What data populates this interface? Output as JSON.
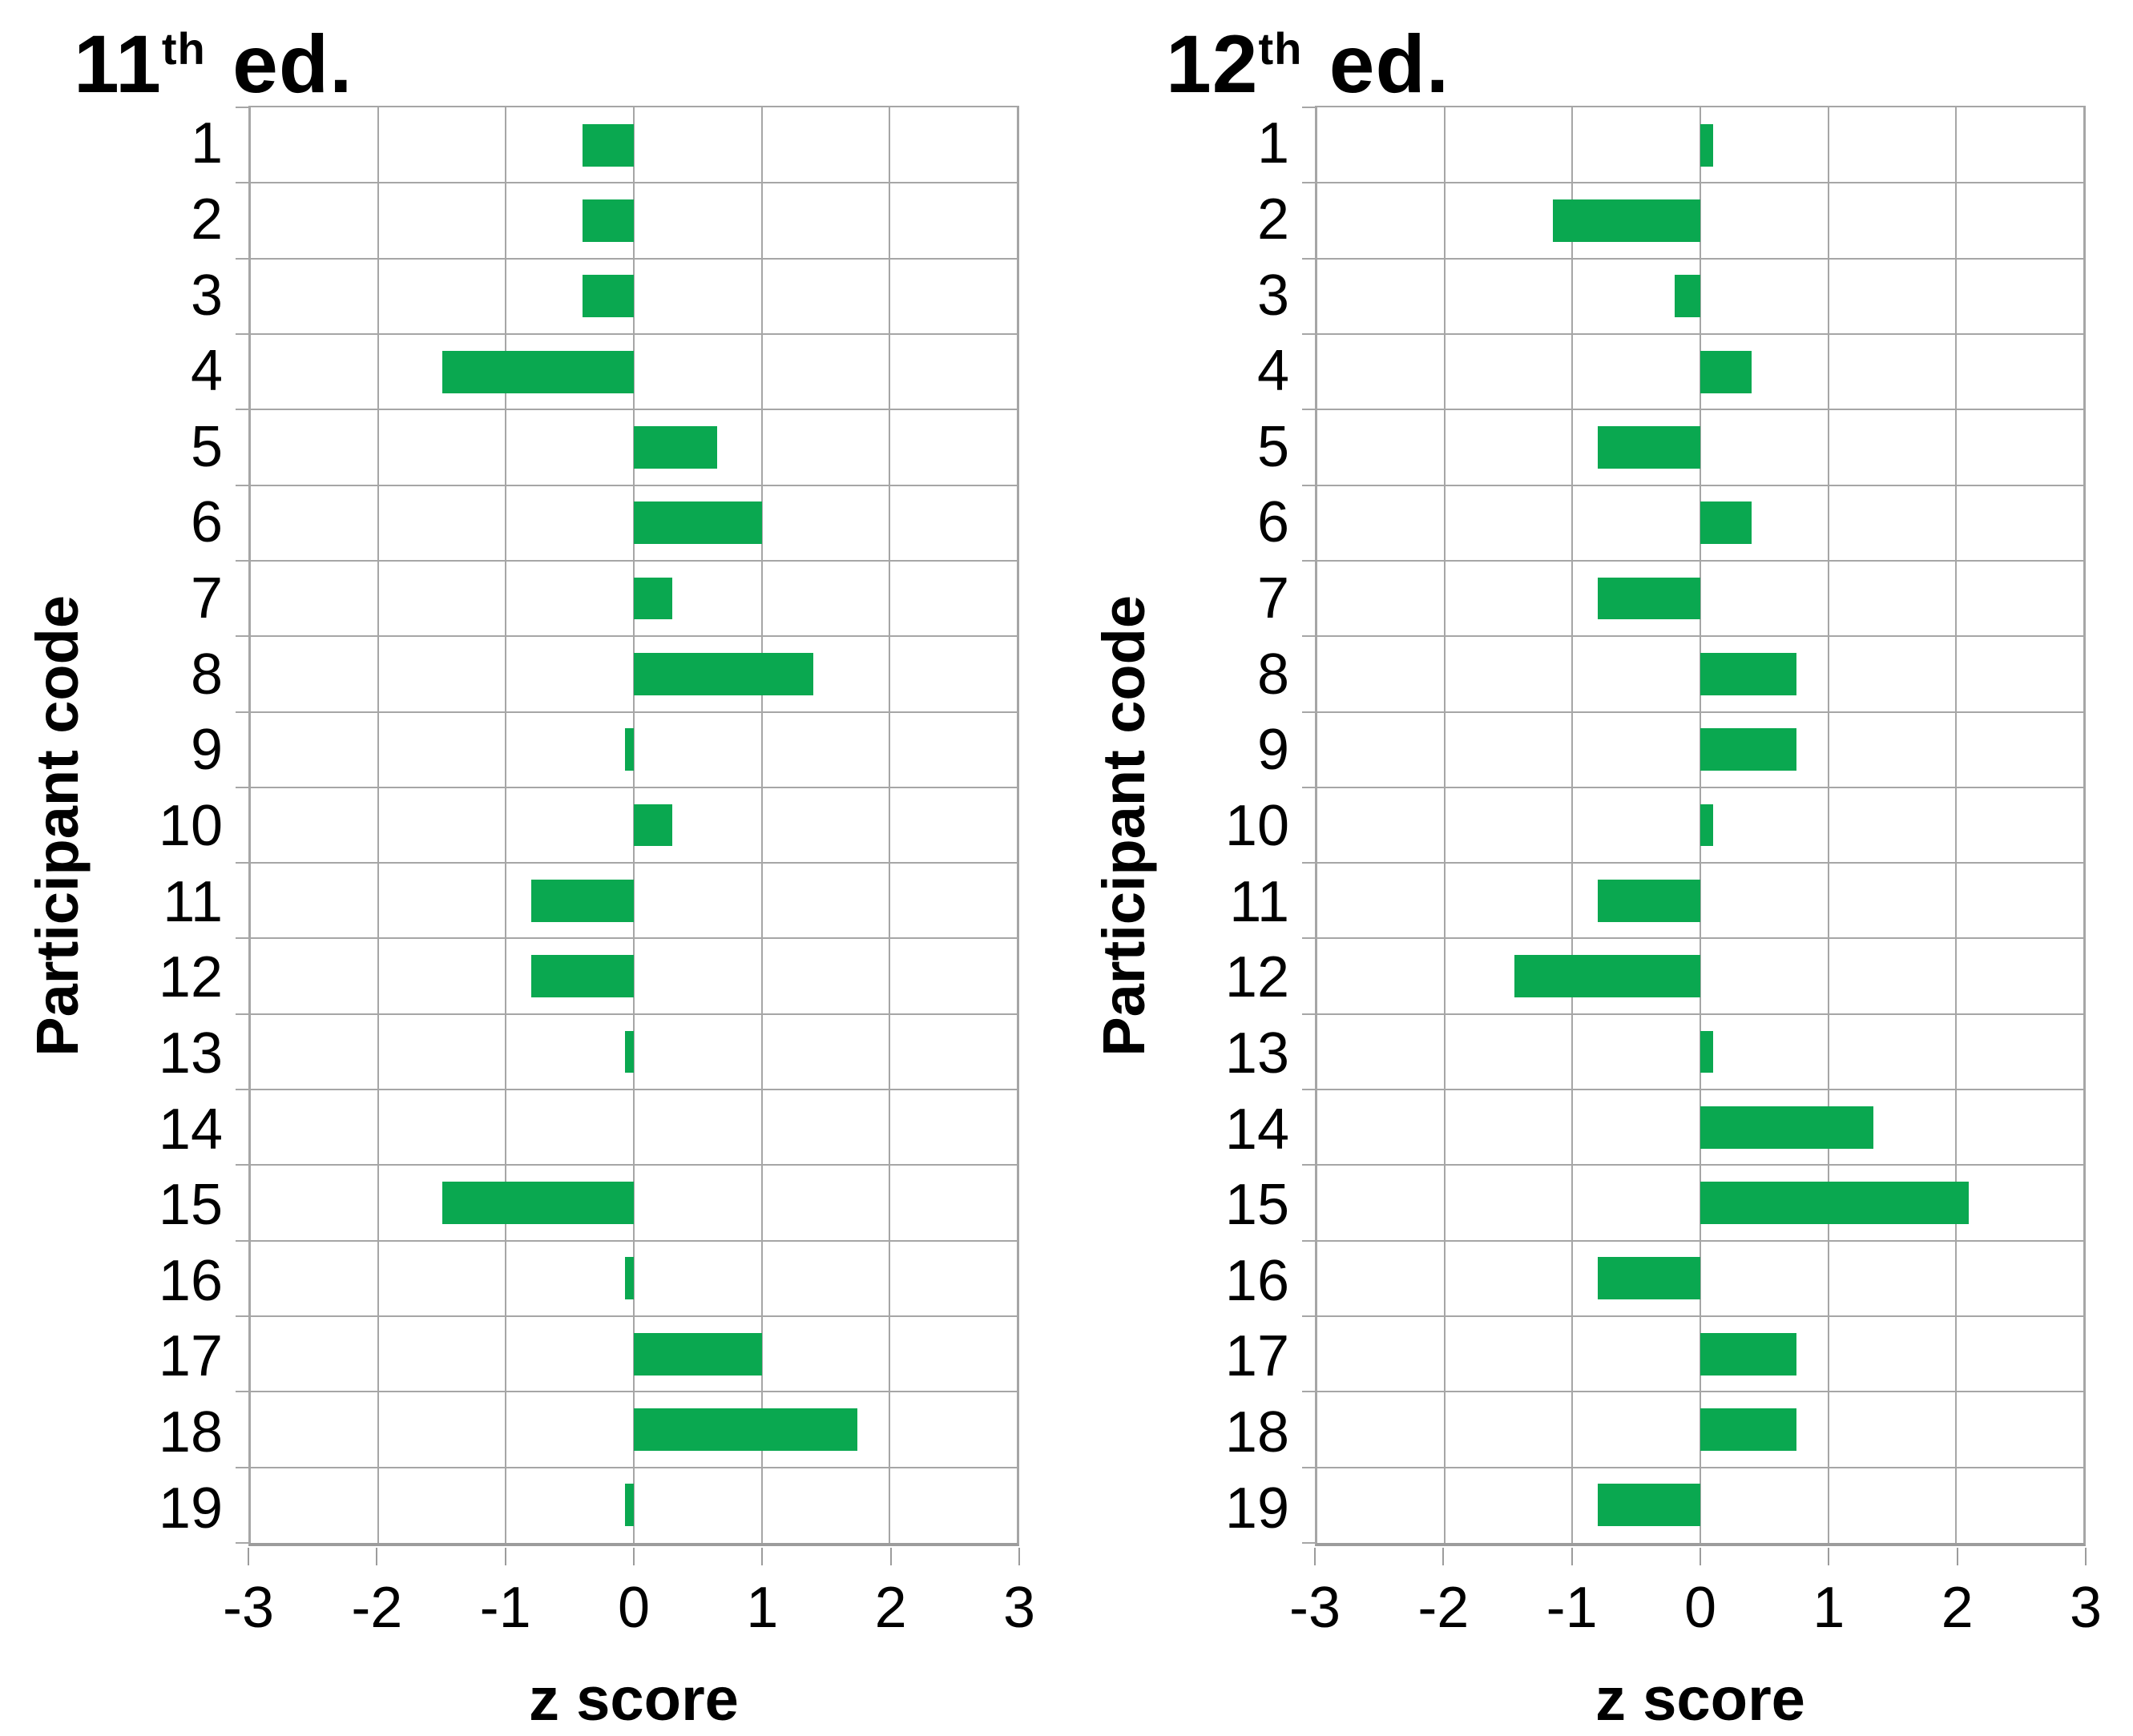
{
  "colors": {
    "bar_green": "#0aa850",
    "gridline": "#a6a6a6",
    "axis_line": "#9c9c9c",
    "text": "#000000",
    "background": "#ffffff"
  },
  "chart_data": [
    {
      "type": "bar",
      "orientation": "horizontal",
      "title": "11th ed.",
      "title_parts": {
        "base": "11",
        "sup": "th",
        "rest": " ed."
      },
      "xlabel": "z score",
      "ylabel": "Participant code",
      "categories": [
        "1",
        "2",
        "3",
        "4",
        "5",
        "6",
        "7",
        "8",
        "9",
        "10",
        "11",
        "12",
        "13",
        "14",
        "15",
        "16",
        "17",
        "18",
        "19"
      ],
      "values": [
        -0.4,
        -0.4,
        -0.4,
        -1.5,
        0.65,
        1.0,
        0.3,
        1.4,
        -0.07,
        0.3,
        -0.8,
        -0.8,
        -0.07,
        0,
        -1.5,
        -0.07,
        1.0,
        1.75,
        -0.07
      ],
      "xlim": [
        -3,
        3
      ],
      "x_ticks": [
        -3,
        -2,
        -1,
        0,
        1,
        2,
        3
      ],
      "grid": true,
      "legend": "none"
    },
    {
      "type": "bar",
      "orientation": "horizontal",
      "title": "12th ed.",
      "title_parts": {
        "base": "12",
        "sup": "th",
        "rest": " ed."
      },
      "xlabel": "z score",
      "ylabel": "Participant code",
      "categories": [
        "1",
        "2",
        "3",
        "4",
        "5",
        "6",
        "7",
        "8",
        "9",
        "10",
        "11",
        "12",
        "13",
        "14",
        "15",
        "16",
        "17",
        "18",
        "19"
      ],
      "values": [
        0.1,
        -1.15,
        -0.2,
        0.4,
        -0.8,
        0.4,
        -0.8,
        0.75,
        0.75,
        0.1,
        -0.8,
        -1.45,
        0.1,
        1.35,
        2.1,
        -0.8,
        0.75,
        0.75,
        -0.8
      ],
      "xlim": [
        -3,
        3
      ],
      "x_ticks": [
        -3,
        -2,
        -1,
        0,
        1,
        2,
        3
      ],
      "grid": true,
      "legend": "none"
    }
  ]
}
